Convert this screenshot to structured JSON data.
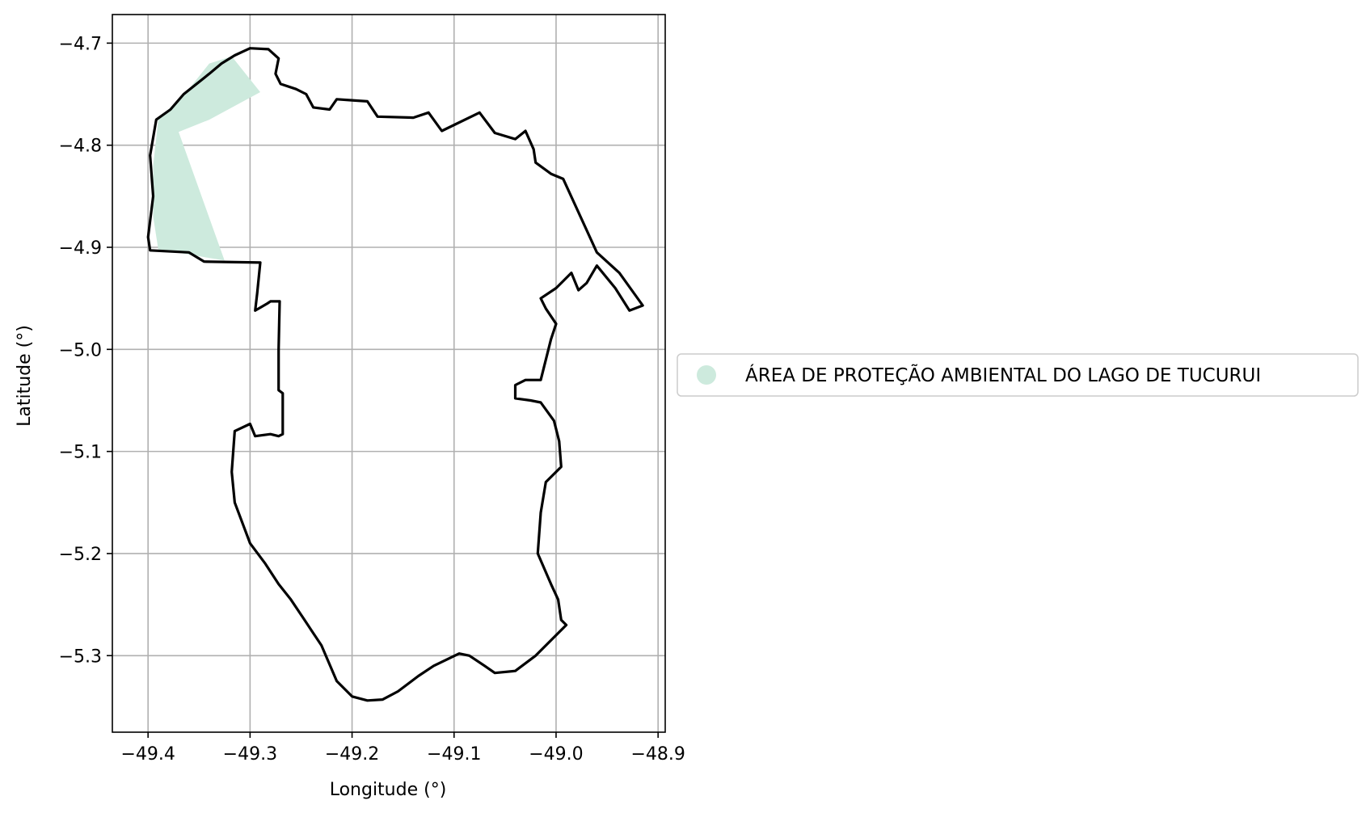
{
  "figure": {
    "xlabel": "Longitude (°)",
    "ylabel": "Latitude (°)",
    "xlim": [
      -49.435,
      -48.893
    ],
    "ylim": [
      -5.375,
      -4.672
    ],
    "x_ticks": [
      -49.4,
      -49.3,
      -49.2,
      -49.1,
      -49.0,
      -48.9
    ],
    "x_tick_labels": [
      "−49.4",
      "−49.3",
      "−49.2",
      "−49.1",
      "−49.0",
      "−48.9"
    ],
    "y_ticks": [
      -4.7,
      -4.8,
      -4.9,
      -5.0,
      -5.1,
      -5.2,
      -5.3
    ],
    "y_tick_labels": [
      "−4.7",
      "−4.8",
      "−4.9",
      "−5.0",
      "−5.1",
      "−5.2",
      "−5.3"
    ],
    "grid": true,
    "legend_placement": "outside right, vertically centered"
  },
  "legend": {
    "label": "ÁREA DE PROTEÇÃO AMBIENTAL DO LAGO DE TUCURUI",
    "marker": "circle",
    "color": "#cdeadd"
  },
  "map_layers": {
    "protected_area": {
      "fill_color": "#cdeadd",
      "polygon_lon_lat": [
        [
          -49.318,
          -4.713
        ],
        [
          -49.29,
          -4.748
        ],
        [
          -49.34,
          -4.775
        ],
        [
          -49.37,
          -4.787
        ],
        [
          -49.325,
          -4.913
        ],
        [
          -49.39,
          -4.902
        ],
        [
          -49.395,
          -4.87
        ],
        [
          -49.395,
          -4.82
        ],
        [
          -49.39,
          -4.775
        ],
        [
          -49.36,
          -4.745
        ],
        [
          -49.34,
          -4.72
        ]
      ]
    },
    "boundary": {
      "stroke_color": "#000000",
      "polyline_lon_lat": [
        [
          -49.3,
          -4.705
        ],
        [
          -49.282,
          -4.706
        ],
        [
          -49.272,
          -4.715
        ],
        [
          -49.275,
          -4.73
        ],
        [
          -49.27,
          -4.74
        ],
        [
          -49.255,
          -4.745
        ],
        [
          -49.245,
          -4.75
        ],
        [
          -49.238,
          -4.763
        ],
        [
          -49.222,
          -4.765
        ],
        [
          -49.215,
          -4.755
        ],
        [
          -49.2,
          -4.756
        ],
        [
          -49.185,
          -4.757
        ],
        [
          -49.175,
          -4.772
        ],
        [
          -49.14,
          -4.773
        ],
        [
          -49.125,
          -4.768
        ],
        [
          -49.112,
          -4.786
        ],
        [
          -49.075,
          -4.768
        ],
        [
          -49.06,
          -4.788
        ],
        [
          -49.04,
          -4.794
        ],
        [
          -49.03,
          -4.786
        ],
        [
          -49.022,
          -4.804
        ],
        [
          -49.02,
          -4.817
        ],
        [
          -49.005,
          -4.828
        ],
        [
          -48.993,
          -4.833
        ],
        [
          -48.96,
          -4.905
        ],
        [
          -48.938,
          -4.925
        ],
        [
          -48.915,
          -4.957
        ],
        [
          -48.928,
          -4.962
        ],
        [
          -48.942,
          -4.94
        ],
        [
          -48.96,
          -4.918
        ],
        [
          -48.97,
          -4.935
        ],
        [
          -48.978,
          -4.942
        ],
        [
          -48.985,
          -4.925
        ],
        [
          -48.995,
          -4.935
        ],
        [
          -49.0,
          -4.94
        ],
        [
          -49.015,
          -4.95
        ],
        [
          -49.01,
          -4.96
        ],
        [
          -49.0,
          -4.975
        ],
        [
          -49.005,
          -4.99
        ],
        [
          -49.015,
          -5.03
        ],
        [
          -49.03,
          -5.03
        ],
        [
          -49.04,
          -5.035
        ],
        [
          -49.04,
          -5.048
        ],
        [
          -49.025,
          -5.05
        ],
        [
          -49.015,
          -5.052
        ],
        [
          -49.002,
          -5.07
        ],
        [
          -48.997,
          -5.09
        ],
        [
          -48.995,
          -5.115
        ],
        [
          -49.01,
          -5.13
        ],
        [
          -49.015,
          -5.16
        ],
        [
          -49.018,
          -5.2
        ],
        [
          -49.005,
          -5.23
        ],
        [
          -48.998,
          -5.245
        ],
        [
          -48.995,
          -5.265
        ],
        [
          -48.99,
          -5.27
        ],
        [
          -49.005,
          -5.285
        ],
        [
          -49.02,
          -5.3
        ],
        [
          -49.04,
          -5.315
        ],
        [
          -49.06,
          -5.317
        ],
        [
          -49.07,
          -5.31
        ],
        [
          -49.085,
          -5.3
        ],
        [
          -49.095,
          -5.298
        ],
        [
          -49.12,
          -5.31
        ],
        [
          -49.135,
          -5.32
        ],
        [
          -49.155,
          -5.335
        ],
        [
          -49.17,
          -5.343
        ],
        [
          -49.185,
          -5.344
        ],
        [
          -49.2,
          -5.34
        ],
        [
          -49.215,
          -5.325
        ],
        [
          -49.23,
          -5.29
        ],
        [
          -49.24,
          -5.275
        ],
        [
          -49.25,
          -5.26
        ],
        [
          -49.26,
          -5.245
        ],
        [
          -49.272,
          -5.23
        ],
        [
          -49.285,
          -5.21
        ],
        [
          -49.3,
          -5.19
        ],
        [
          -49.315,
          -5.15
        ],
        [
          -49.318,
          -5.12
        ],
        [
          -49.315,
          -5.08
        ],
        [
          -49.3,
          -5.073
        ],
        [
          -49.295,
          -5.085
        ],
        [
          -49.28,
          -5.083
        ],
        [
          -49.272,
          -5.085
        ],
        [
          -49.268,
          -5.083
        ],
        [
          -49.268,
          -5.043
        ],
        [
          -49.272,
          -5.04
        ],
        [
          -49.272,
          -5.0
        ],
        [
          -49.271,
          -4.953
        ],
        [
          -49.28,
          -4.953
        ],
        [
          -49.283,
          -4.955
        ],
        [
          -49.295,
          -4.962
        ],
        [
          -49.293,
          -4.945
        ],
        [
          -49.29,
          -4.915
        ],
        [
          -49.345,
          -4.914
        ],
        [
          -49.36,
          -4.905
        ],
        [
          -49.398,
          -4.903
        ],
        [
          -49.4,
          -4.89
        ],
        [
          -49.395,
          -4.85
        ],
        [
          -49.398,
          -4.81
        ],
        [
          -49.392,
          -4.775
        ],
        [
          -49.378,
          -4.765
        ],
        [
          -49.365,
          -4.75
        ],
        [
          -49.34,
          -4.73
        ],
        [
          -49.328,
          -4.72
        ],
        [
          -49.315,
          -4.712
        ],
        [
          -49.3,
          -4.705
        ]
      ]
    }
  }
}
